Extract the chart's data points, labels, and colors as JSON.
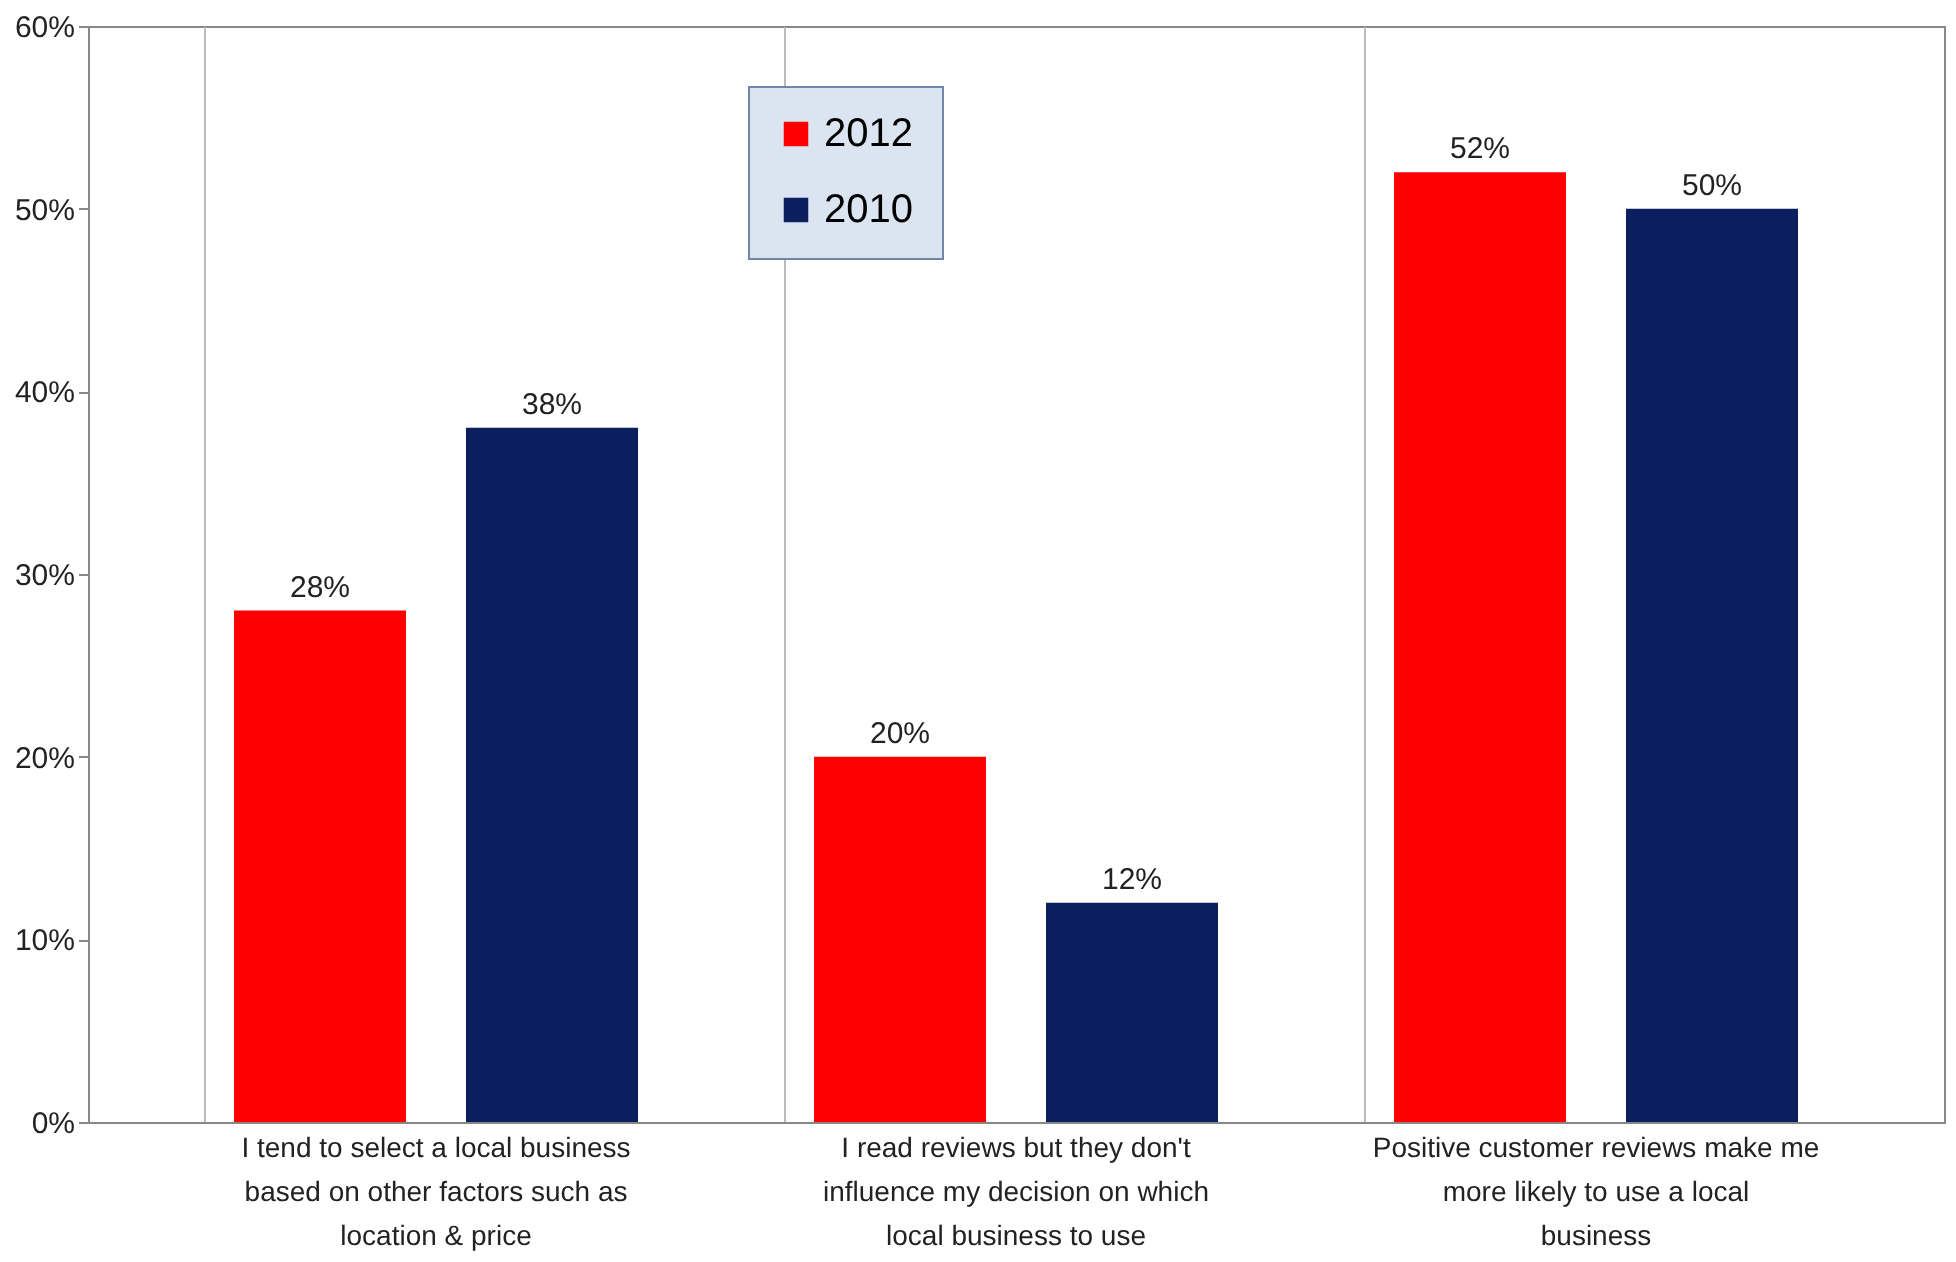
{
  "chart_data": {
    "type": "bar",
    "categories": [
      "I tend to select a local business based on other factors such as location & price",
      "I read reviews but they don't influence my decision on which local business to use",
      "Positive customer reviews make me more likely to use a local business"
    ],
    "series": [
      {
        "name": "2012",
        "color": "#ff0000",
        "values": [
          28,
          20,
          52
        ],
        "value_labels": [
          "28%",
          "20%",
          "52%"
        ]
      },
      {
        "name": "2010",
        "color": "#0b1f5e",
        "values": [
          38,
          12,
          50
        ],
        "value_labels": [
          "38%",
          "12%",
          "50%"
        ]
      }
    ],
    "ylim": [
      0,
      60
    ],
    "yticks": [
      {
        "value": 0,
        "label": "0%"
      },
      {
        "value": 10,
        "label": "10%"
      },
      {
        "value": 20,
        "label": "20%"
      },
      {
        "value": 30,
        "label": "30%"
      },
      {
        "value": 40,
        "label": "40%"
      },
      {
        "value": 50,
        "label": "50%"
      },
      {
        "value": 60,
        "label": "60%"
      }
    ],
    "grid": "x",
    "legend": "top"
  }
}
